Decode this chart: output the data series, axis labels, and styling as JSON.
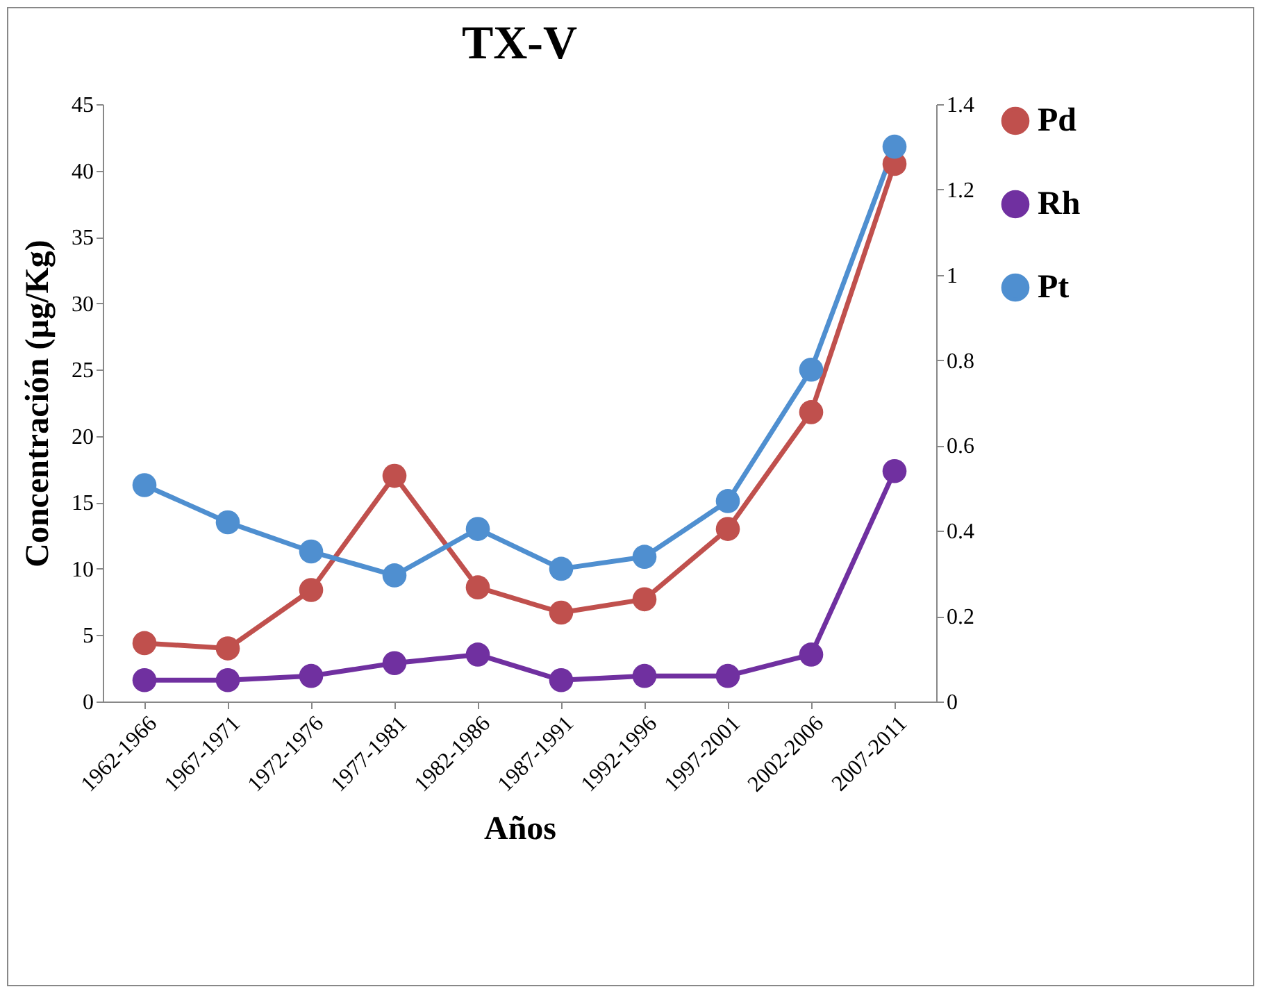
{
  "chart_data": {
    "type": "line",
    "title": "TX-V",
    "xlabel": "Años",
    "ylabel": "Concentración (µg/Kg)",
    "categories": [
      "1962-1966",
      "1967-1971",
      "1972-1976",
      "1977-1981",
      "1982-1986",
      "1987-1991",
      "1992-1996",
      "1997-2001",
      "2002-2006",
      "2007-2011"
    ],
    "series": [
      {
        "name": "Pd",
        "color": "#c0504d",
        "values": [
          4.4,
          4.0,
          8.4,
          17.0,
          8.6,
          6.7,
          7.7,
          13.0,
          21.8,
          40.5
        ]
      },
      {
        "name": "Rh",
        "color": "#7030a0",
        "axis": "y2",
        "values": [
          0.05,
          0.05,
          0.06,
          0.09,
          0.11,
          0.05,
          0.06,
          0.06,
          0.11,
          0.54
        ]
      },
      {
        "name": "Pt",
        "color": "#4f8fd0",
        "values": [
          16.3,
          13.5,
          11.3,
          9.5,
          13.0,
          10.0,
          10.9,
          15.1,
          25.0,
          41.8
        ]
      }
    ],
    "ylim": [
      0,
      45
    ],
    "yticks": [
      0,
      5,
      10,
      15,
      20,
      25,
      30,
      35,
      40,
      45
    ],
    "y2lim": [
      0,
      1.4
    ],
    "y2ticks": [
      0,
      0.2,
      0.4,
      0.6,
      0.8,
      1,
      1.2,
      1.4
    ],
    "legend": "right",
    "marker": "circle",
    "line_style": "solid",
    "grid": false
  }
}
